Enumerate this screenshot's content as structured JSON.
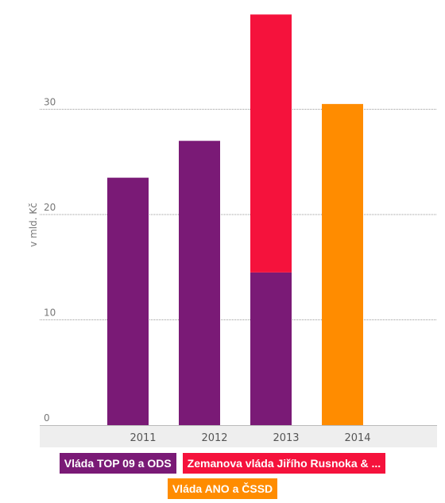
{
  "chart_data": {
    "type": "bar",
    "stacked": true,
    "ylabel": "v mld. Kč",
    "ylim": [
      0,
      40
    ],
    "yticks": [
      0,
      10,
      20,
      30
    ],
    "grid": true,
    "legend_position": "bottom",
    "categories": [
      "2011",
      "2012",
      "2013",
      "2014"
    ],
    "series": [
      {
        "name": "Vláda TOP 09 a ODS",
        "color": "#7a1a76",
        "values": [
          23.5,
          27,
          14.5,
          0
        ]
      },
      {
        "name": "Zemanova vláda Jiřího Rusnoka & ...",
        "color": "#f5123c",
        "values": [
          0,
          0,
          24.5,
          0
        ]
      },
      {
        "name": "Vláda ANO a ČSSD",
        "color": "#ff8c00",
        "values": [
          0,
          0,
          0,
          30.5
        ]
      }
    ]
  }
}
